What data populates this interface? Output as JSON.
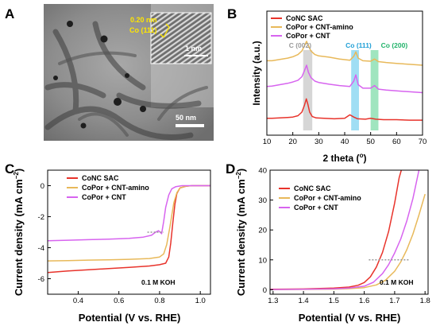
{
  "colors": {
    "conc_sac": "#e8332b",
    "copor_cnt_amino": "#e8b95a",
    "copor_cnt": "#d764ef",
    "c002_band": "#cfcfcf",
    "co111_band": "#8fd8f2",
    "co200_band": "#8fe0b4",
    "c002_text": "#9a9a9a",
    "co111_text": "#1f9fd6",
    "co200_text": "#21b36a",
    "tem_annot": "#ffe600",
    "ref_line": "#9a9a9a"
  },
  "panelA": {
    "label": "A",
    "inset_spacing": "0.20 nm",
    "inset_plane": "Co (111)",
    "inset_scale": "1 nm",
    "scale_bar": "50 nm"
  },
  "chart_data": [
    {
      "panel": "B",
      "type": "line",
      "xlabel": "2 theta (",
      "xlabel_unit": "o",
      "xlabel_close": ")",
      "ylabel": "Intensity (a.u.)",
      "xlim": [
        10,
        70
      ],
      "xticks": [
        "10",
        "20",
        "30",
        "40",
        "50",
        "60",
        "70"
      ],
      "legend": [
        "CoNC SAC",
        "CoPor + CNT-amino",
        "CoPor + CNT"
      ],
      "legend_position": "top-right",
      "bands": [
        {
          "label": "C (002)",
          "x_from": 24.0,
          "x_to": 27.5
        },
        {
          "label": "Co (111)",
          "x_from": 42.5,
          "x_to": 45.5
        },
        {
          "label": "Co (200)",
          "x_from": 50.0,
          "x_to": 53.0
        }
      ],
      "series": [
        {
          "name": "CoNC SAC",
          "x": [
            10,
            12,
            15,
            18,
            20,
            22,
            23.5,
            24.5,
            25.2,
            25.8,
            26.5,
            27.5,
            29,
            32,
            36,
            40,
            42,
            43.5,
            45,
            48,
            50,
            52,
            55,
            60,
            65,
            70
          ],
          "y": [
            1.9,
            1.9,
            1.95,
            2.0,
            2.05,
            2.2,
            2.6,
            3.4,
            4.1,
            3.5,
            2.6,
            2.1,
            1.95,
            1.9,
            1.85,
            1.9,
            2.3,
            2.05,
            1.85,
            1.8,
            1.9,
            1.8,
            1.75,
            1.75,
            1.7,
            1.7
          ]
        },
        {
          "name": "CoPor + CNT-amino",
          "x": [
            10,
            12,
            15,
            18,
            20,
            22,
            23.5,
            24.5,
            25.3,
            26.0,
            27.0,
            28.5,
            30,
            34,
            38,
            42,
            43.5,
            44.3,
            45.2,
            47,
            50,
            51.5,
            53,
            56,
            60,
            65,
            70
          ],
          "y": [
            8.4,
            8.4,
            8.55,
            8.7,
            8.85,
            9.1,
            9.5,
            10.1,
            10.6,
            10.1,
            9.5,
            9.1,
            8.95,
            8.8,
            8.6,
            8.45,
            8.9,
            9.4,
            8.7,
            8.4,
            8.35,
            8.6,
            8.3,
            8.2,
            8.1,
            8.0,
            7.9
          ]
        },
        {
          "name": "CoPor + CNT",
          "x": [
            10,
            12,
            15,
            18,
            20,
            22,
            23.5,
            24.5,
            25.3,
            26.0,
            27.0,
            28.5,
            30,
            34,
            38,
            42,
            43.5,
            44.3,
            45.2,
            47,
            50,
            51.5,
            53,
            56,
            60,
            65,
            70
          ],
          "y": [
            5.5,
            5.55,
            5.7,
            5.85,
            6.0,
            6.2,
            6.6,
            7.3,
            7.9,
            7.1,
            6.5,
            6.1,
            5.95,
            5.75,
            5.6,
            5.5,
            6.1,
            6.8,
            5.7,
            5.3,
            5.3,
            5.6,
            5.2,
            5.1,
            5.0,
            4.9,
            4.8
          ]
        }
      ],
      "ylim_internal": [
        0,
        14
      ]
    },
    {
      "panel": "C",
      "type": "line",
      "xlabel": "Potential (V vs. RHE)",
      "ylabel": "Current density (mA cm",
      "ylabel_sup": "−2",
      "ylabel_close": ")",
      "xlim": [
        0.25,
        1.05
      ],
      "ylim": [
        -7,
        1
      ],
      "xticks": [
        0.4,
        0.6,
        0.8,
        1.0
      ],
      "xtick_labels": [
        "0.4",
        "0.6",
        "0.8",
        "1.0"
      ],
      "yticks": [
        -6,
        -4,
        -2,
        0
      ],
      "ytick_labels": [
        "-6",
        "-4",
        "-2",
        "0"
      ],
      "legend": [
        "CoNC SAC",
        "CoPor + CNT-amino",
        "CoPor + CNT"
      ],
      "legend_position": "top-right",
      "annotation": "0.1 M KOH",
      "ref_line": {
        "x_from": 0.74,
        "x_to": 0.82,
        "y": -3.0
      },
      "series": [
        {
          "name": "CoNC SAC",
          "x": [
            0.25,
            0.35,
            0.45,
            0.55,
            0.65,
            0.75,
            0.8,
            0.83,
            0.845,
            0.855,
            0.865,
            0.875,
            0.885,
            0.9,
            0.93,
            0.96,
            1.0,
            1.05
          ],
          "y": [
            -5.6,
            -5.5,
            -5.42,
            -5.35,
            -5.27,
            -5.18,
            -5.1,
            -5.0,
            -4.6,
            -3.7,
            -2.4,
            -1.2,
            -0.5,
            -0.15,
            -0.03,
            0.0,
            0.0,
            0.0
          ]
        },
        {
          "name": "CoPor + CNT-amino",
          "x": [
            0.25,
            0.35,
            0.45,
            0.55,
            0.65,
            0.75,
            0.8,
            0.82,
            0.835,
            0.85,
            0.86,
            0.87,
            0.885,
            0.9,
            0.93,
            0.96,
            1.0,
            1.05
          ],
          "y": [
            -4.85,
            -4.83,
            -4.8,
            -4.78,
            -4.75,
            -4.7,
            -4.6,
            -4.4,
            -3.8,
            -2.7,
            -1.9,
            -1.1,
            -0.45,
            -0.15,
            -0.03,
            0.0,
            0.0,
            0.0
          ]
        },
        {
          "name": "CoPor + CNT",
          "x": [
            0.25,
            0.35,
            0.45,
            0.55,
            0.65,
            0.72,
            0.76,
            0.78,
            0.795,
            0.81,
            0.82,
            0.83,
            0.845,
            0.86,
            0.88,
            0.91,
            0.95,
            1.0,
            1.05
          ],
          "y": [
            -3.55,
            -3.52,
            -3.48,
            -3.45,
            -3.4,
            -3.32,
            -3.2,
            -3.0,
            -2.9,
            -3.1,
            -2.3,
            -1.4,
            -0.6,
            -0.2,
            -0.06,
            0.0,
            0.0,
            0.0,
            0.0
          ]
        }
      ]
    },
    {
      "panel": "D",
      "type": "line",
      "xlabel": "Potential (V vs. RHE)",
      "ylabel": "Current density (mA cm",
      "ylabel_sup": "−2",
      "ylabel_close": ")",
      "xlim": [
        1.29,
        1.81
      ],
      "ylim": [
        -1.5,
        40
      ],
      "xticks": [
        1.3,
        1.4,
        1.5,
        1.6,
        1.7,
        1.8
      ],
      "xtick_labels": [
        "1.3",
        "1.4",
        "1.5",
        "1.6",
        "1.7",
        "1.8"
      ],
      "yticks": [
        0,
        10,
        20,
        30,
        40
      ],
      "ytick_labels": [
        "0",
        "10",
        "20",
        "30",
        "40"
      ],
      "legend": [
        "CoNC SAC",
        "CoPor + CNT-amino",
        "CoPor + CNT"
      ],
      "legend_position": "top-left",
      "annotation": "0.1 M KOH",
      "ref_line": {
        "x_from": 1.615,
        "x_to": 1.75,
        "y": 10
      },
      "series": [
        {
          "name": "CoNC SAC",
          "x": [
            1.29,
            1.4,
            1.5,
            1.55,
            1.58,
            1.6,
            1.62,
            1.64,
            1.66,
            1.68,
            1.7,
            1.715,
            1.722
          ],
          "y": [
            0.15,
            0.25,
            0.55,
            0.9,
            1.5,
            2.4,
            4.3,
            7.6,
            12.5,
            19.5,
            29.0,
            37.5,
            40
          ]
        },
        {
          "name": "CoPor + CNT-amino",
          "x": [
            1.29,
            1.4,
            1.5,
            1.55,
            1.6,
            1.64,
            1.67,
            1.7,
            1.72,
            1.74,
            1.76,
            1.78,
            1.8
          ],
          "y": [
            0.05,
            0.1,
            0.2,
            0.35,
            0.7,
            1.6,
            3.2,
            6.2,
            9.3,
            13.4,
            18.6,
            25.0,
            32.0
          ]
        },
        {
          "name": "CoPor + CNT",
          "x": [
            1.29,
            1.4,
            1.5,
            1.55,
            1.6,
            1.63,
            1.66,
            1.68,
            1.7,
            1.72,
            1.74,
            1.76,
            1.78
          ],
          "y": [
            0.08,
            0.15,
            0.3,
            0.55,
            1.2,
            2.5,
            5.4,
            8.4,
            12.3,
            17.0,
            23.0,
            30.5,
            40
          ]
        }
      ]
    }
  ]
}
